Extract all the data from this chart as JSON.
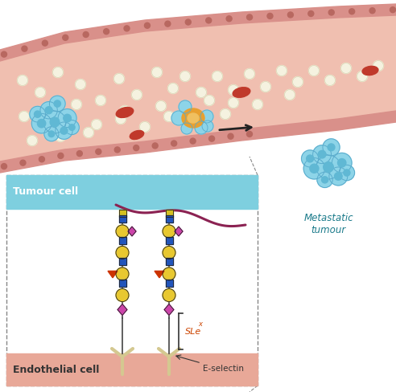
{
  "bg_color": "#ffffff",
  "vessel_inner_color": "#f0bfb0",
  "vessel_wall_color": "#d9908a",
  "vessel_wall_dots": "#b86860",
  "tumour_cell_color": "#8dd4e8",
  "tumour_cell_edge": "#5aabcc",
  "tumour_cell_nucleus": "#60b8d4",
  "rbc_color": "#c0392b",
  "platelet_color": "#f5f2e0",
  "platelet_edge": "#d8d4b0",
  "inset_bg": "#ffffff",
  "inset_border": "#888888",
  "inset_tumour_color": "#7ecfdf",
  "inset_endo_color": "#e8a898",
  "blue_sq_color": "#2255bb",
  "yellow_circ_color": "#e8c830",
  "pink_dia_color": "#cc44aa",
  "orange_tri_color": "#cc3300",
  "yellow_sq_color": "#d4c020",
  "receptor_color": "#d4c890",
  "chain_line_color": "#444444",
  "arrow_color": "#222222",
  "mucin_color": "#8b2252",
  "selectin_label": "E-selectin",
  "sle_label": "SLe",
  "tumour_label": "Tumour cell",
  "endo_label": "Endothelial cell",
  "metastatic_label": "Metastatic\ntumour",
  "text_color_teal": "#1a7a8a",
  "orange_cell_color": "#e8a030",
  "orange_nuc_color": "#f0c060"
}
